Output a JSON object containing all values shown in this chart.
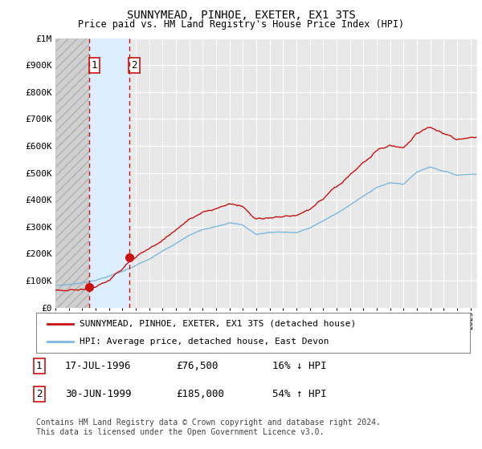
{
  "title": "SUNNYMEAD, PINHOE, EXETER, EX1 3TS",
  "subtitle": "Price paid vs. HM Land Registry's House Price Index (HPI)",
  "legend_line1": "SUNNYMEAD, PINHOE, EXETER, EX1 3TS (detached house)",
  "legend_line2": "HPI: Average price, detached house, East Devon",
  "transaction1_label": "1",
  "transaction1_date": "17-JUL-1996",
  "transaction1_price": "£76,500",
  "transaction1_hpi": "16% ↓ HPI",
  "transaction2_label": "2",
  "transaction2_date": "30-JUN-1999",
  "transaction2_price": "£185,000",
  "transaction2_hpi": "54% ↑ HPI",
  "footer": "Contains HM Land Registry data © Crown copyright and database right 2024.\nThis data is licensed under the Open Government Licence v3.0.",
  "ylim": [
    0,
    1000000
  ],
  "yticks": [
    0,
    100000,
    200000,
    300000,
    400000,
    500000,
    600000,
    700000,
    800000,
    900000,
    1000000
  ],
  "ytick_labels": [
    "£0",
    "£100K",
    "£200K",
    "£300K",
    "£400K",
    "£500K",
    "£600K",
    "£700K",
    "£800K",
    "£900K",
    "£1M"
  ],
  "transaction1_x": 1996.54,
  "transaction1_y": 76500,
  "transaction2_x": 1999.5,
  "transaction2_y": 185000,
  "hatch_region_end": 1996.54,
  "blue_region_start": 1996.54,
  "blue_region_end": 1999.5,
  "dashed_line1_x": 1996.54,
  "dashed_line2_x": 1999.5,
  "xmin": 1994.0,
  "xmax": 2025.5,
  "bg_color": "#ffffff",
  "plot_bg_color": "#e8e8e8",
  "hatch_bg_color": "#d0d0d0",
  "hatch_edgecolor": "#b0b0b0",
  "blue_region_color": "#ddeeff",
  "grid_color": "#ffffff",
  "hpi_line_color": "#7ab8e0",
  "price_line_color": "#cc1111",
  "marker_color": "#cc1111",
  "dashed_color": "#cc1111",
  "label_box_edgecolor": "#cc1111"
}
